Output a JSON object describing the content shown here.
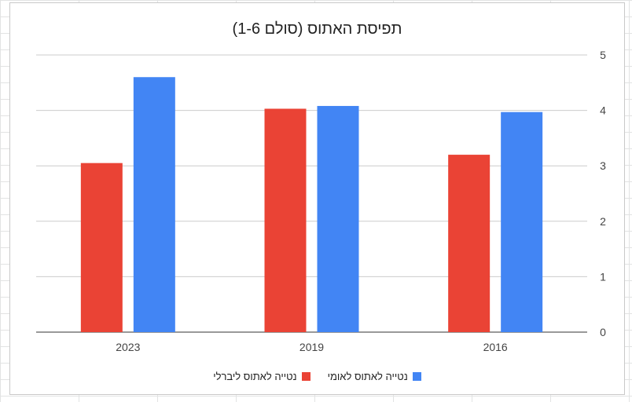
{
  "chart_data": {
    "type": "bar",
    "title": "תפיסת האתוס (סולם 1-6)",
    "categories": [
      "2023",
      "2019",
      "2016"
    ],
    "series": [
      {
        "name": "נטייה לאתוס ליברלי",
        "color": "#ea4335",
        "values": [
          3.05,
          4.03,
          3.2
        ]
      },
      {
        "name": "נטייה לאתוס לאומי",
        "color": "#4285f4",
        "values": [
          4.6,
          4.08,
          3.97
        ]
      }
    ],
    "ylim": [
      0,
      5
    ],
    "yticks": [
      "0",
      "1",
      "2",
      "3",
      "4",
      "5"
    ],
    "y_axis_side": "right",
    "grid": true,
    "legend_position": "bottom"
  }
}
